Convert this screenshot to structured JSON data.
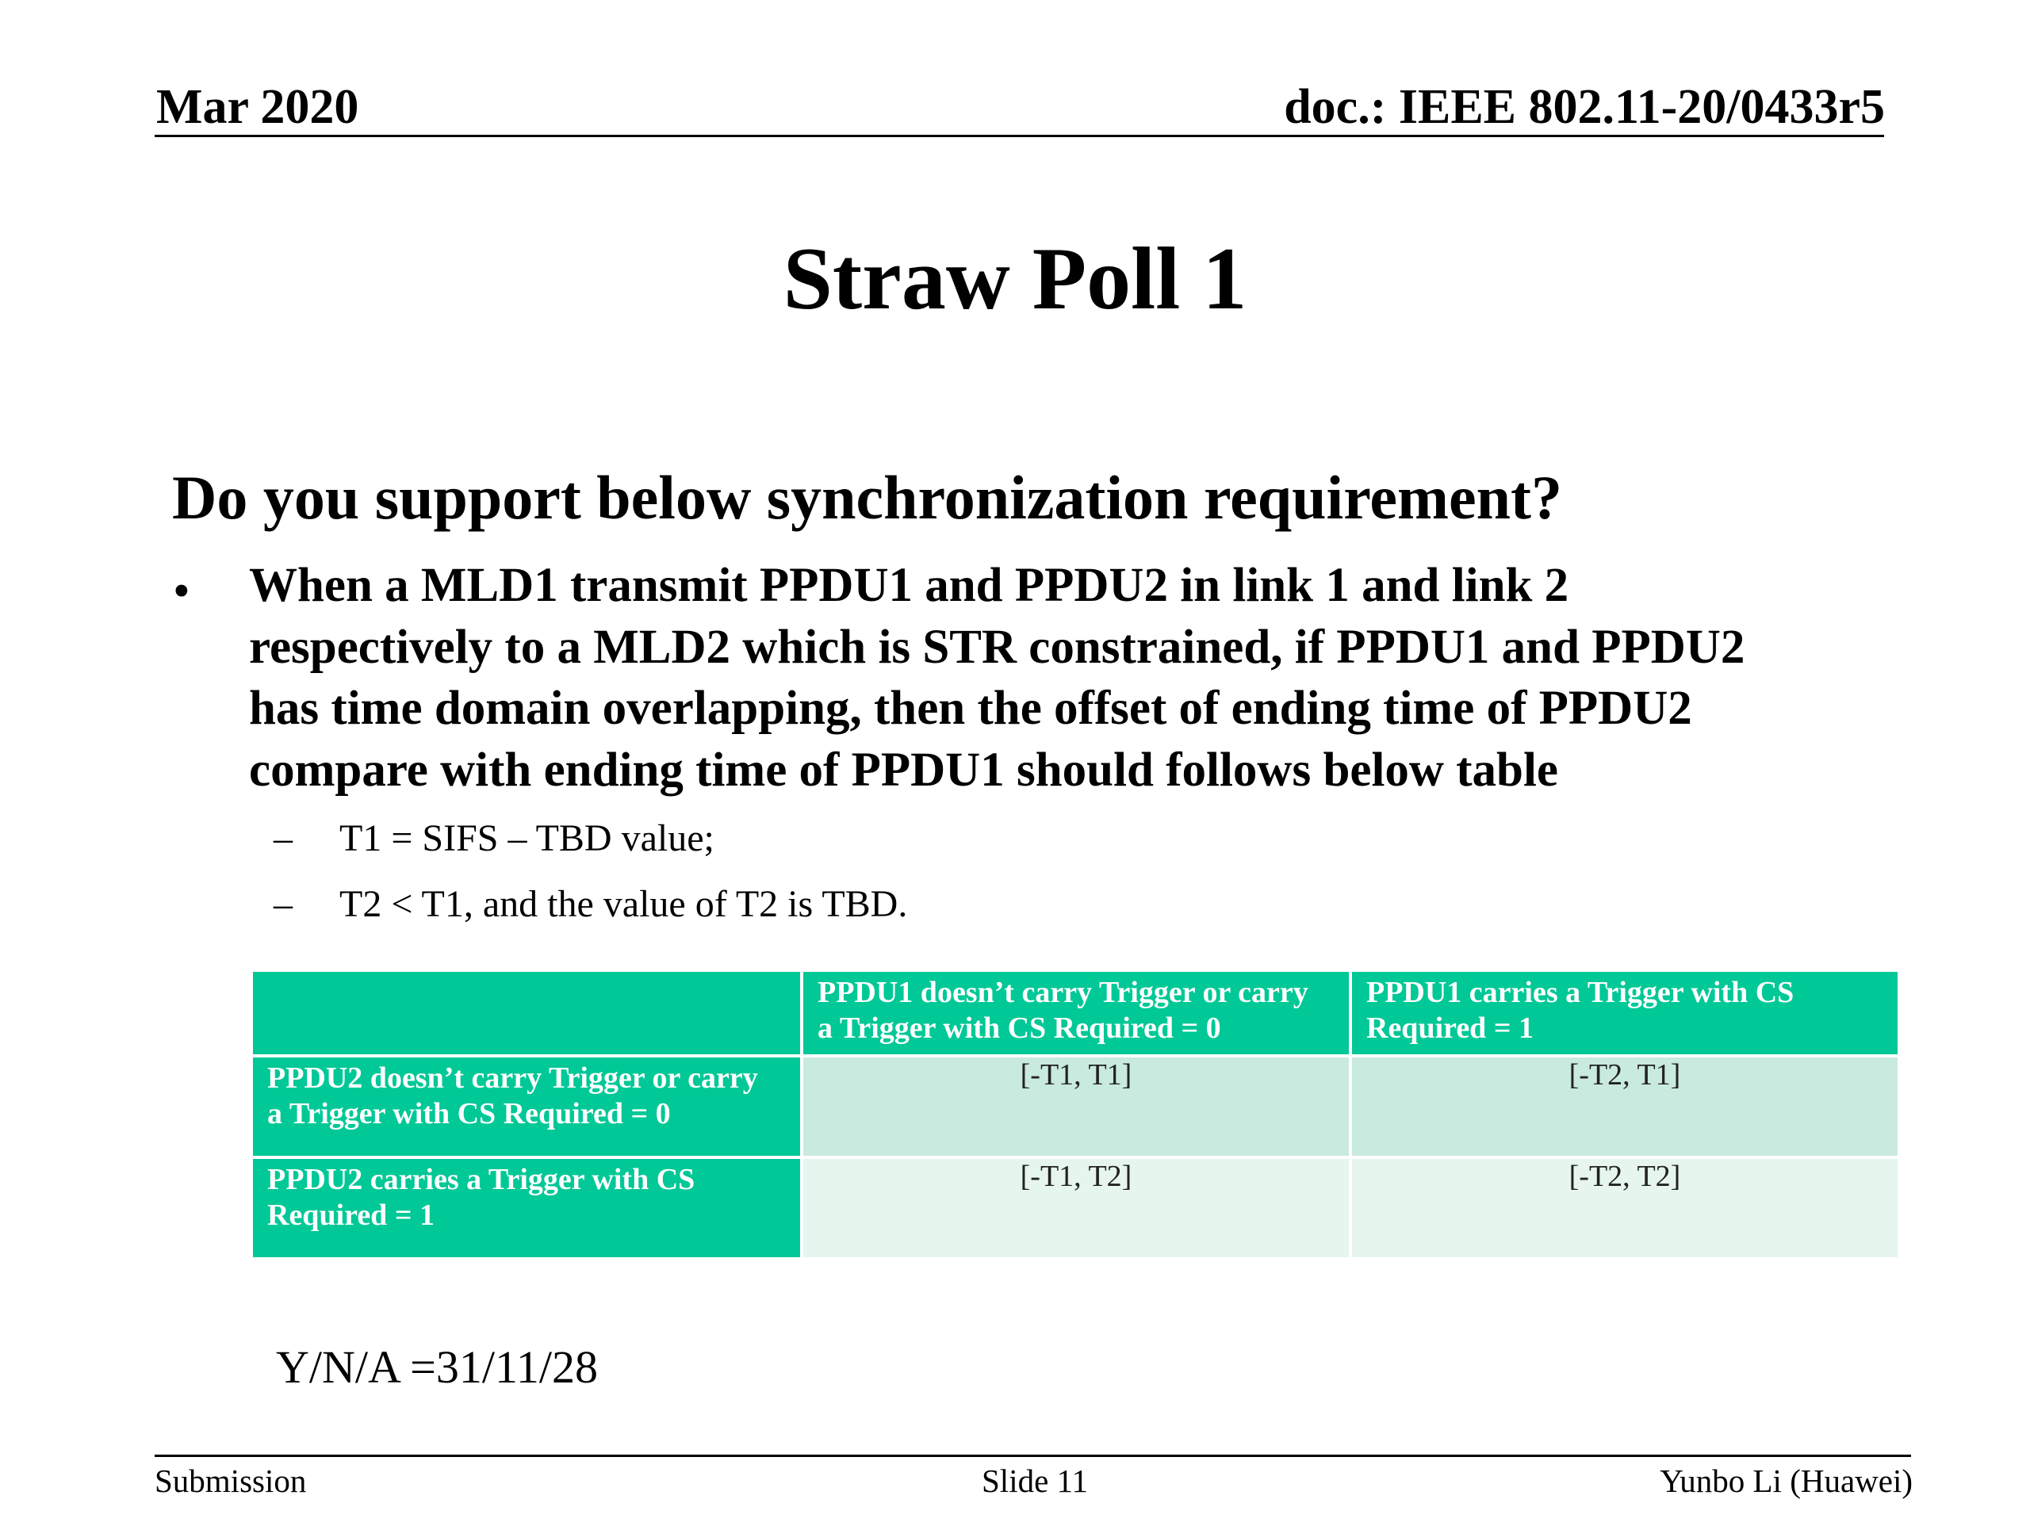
{
  "header": {
    "date": "Mar 2020",
    "doc_id": "doc.: IEEE 802.11-20/0433r5"
  },
  "slide": {
    "title": "Straw Poll 1",
    "question": "Do you support below synchronization requirement?",
    "bullet": {
      "marker": "•",
      "lines": [
        "When a MLD1 transmit PPDU1 and PPDU2 in link 1 and link 2",
        "respectively to a MLD2 which is STR constrained, if PPDU1 and PPDU2",
        "has time domain overlapping, then the offset of ending time of PPDU2",
        "compare with ending time of PPDU1 should follows below table"
      ]
    },
    "sub_bullets": [
      {
        "marker": "–",
        "text": "T1 = SIFS – TBD value;"
      },
      {
        "marker": "–",
        "text": "T2 < T1, and the value of T2 is TBD."
      }
    ],
    "table": {
      "col_headers": [
        "",
        [
          "PPDU1 doesn’t carry Trigger or carry",
          "a Trigger with CS Required = 0"
        ],
        [
          "PPDU1 carries a Trigger with CS",
          "Required = 1"
        ]
      ],
      "rows": [
        {
          "header": [
            "PPDU2 doesn’t carry Trigger or carry",
            "a Trigger with CS Required = 0"
          ],
          "cells": [
            "[-T1, T1]",
            "[-T2, T1]"
          ]
        },
        {
          "header": [
            "PPDU2 carries a Trigger with CS",
            "Required = 1"
          ],
          "cells": [
            "[-T1, T2]",
            "[-T2, T2]"
          ]
        }
      ]
    },
    "vote_result": "Y/N/A =31/11/28"
  },
  "footer": {
    "left": "Submission",
    "center": "Slide 11",
    "right": "Yunbo Li (Huawei)"
  },
  "colors": {
    "table_header": "#00c896",
    "table_row1": "#c9eade",
    "table_row2": "#e6f5ee"
  }
}
